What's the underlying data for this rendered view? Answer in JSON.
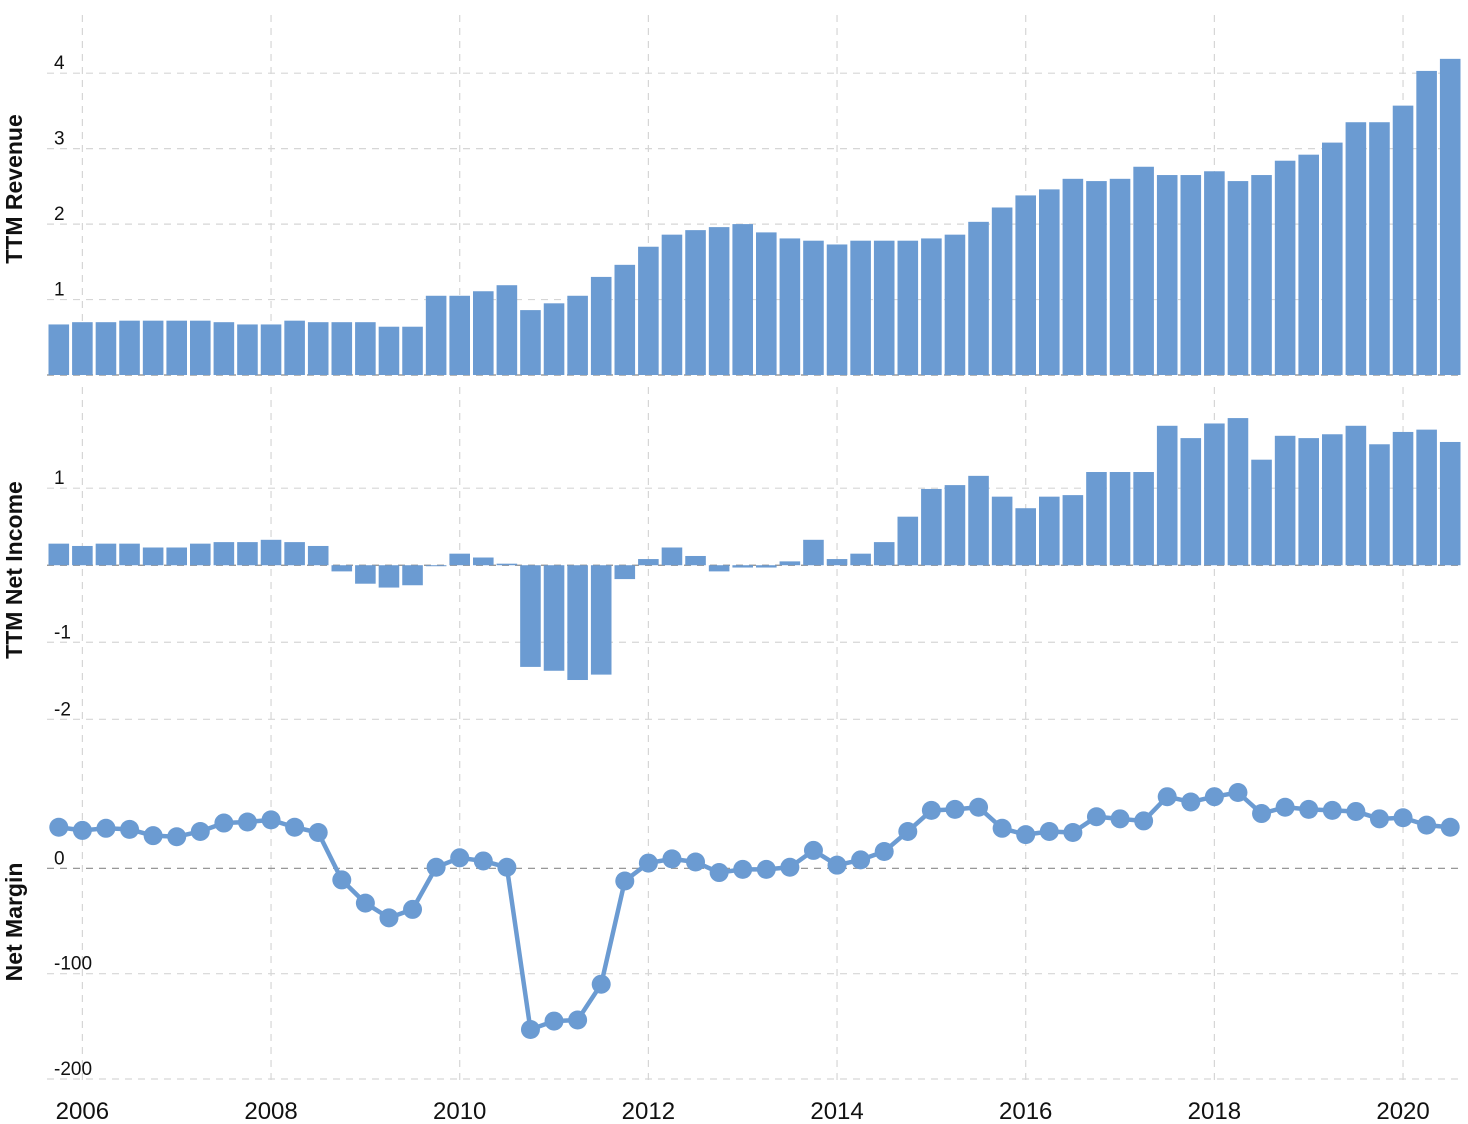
{
  "chart_data": [
    {
      "type": "bar",
      "ylabel": "TTM Revenue",
      "ylim": [
        0,
        4.4
      ],
      "yticks": [
        0,
        1,
        2,
        3,
        4
      ],
      "grid": true,
      "series": [
        {
          "color": "#6b9bd2",
          "x": [
            2005.75,
            2006.0,
            2006.25,
            2006.5,
            2006.75,
            2007.0,
            2007.25,
            2007.5,
            2007.75,
            2008.0,
            2008.25,
            2008.5,
            2008.75,
            2009.0,
            2009.25,
            2009.5,
            2009.75,
            2010.0,
            2010.25,
            2010.5,
            2010.75,
            2011.0,
            2011.25,
            2011.5,
            2011.75,
            2012.0,
            2012.25,
            2012.5,
            2012.75,
            2013.0,
            2013.25,
            2013.5,
            2013.75,
            2014.0,
            2014.25,
            2014.5,
            2014.75,
            2015.0,
            2015.25,
            2015.5,
            2015.75,
            2016.0,
            2016.25,
            2016.5,
            2016.75,
            2017.0,
            2017.25,
            2017.5,
            2017.75,
            2018.0,
            2018.25,
            2018.5,
            2018.75,
            2019.0,
            2019.25,
            2019.5,
            2019.75,
            2020.0,
            2020.25,
            2020.5
          ],
          "values": [
            0.67,
            0.7,
            0.7,
            0.72,
            0.72,
            0.72,
            0.72,
            0.7,
            0.67,
            0.67,
            0.72,
            0.7,
            0.7,
            0.7,
            0.64,
            0.64,
            1.05,
            1.05,
            1.11,
            1.19,
            0.86,
            0.95,
            1.05,
            1.3,
            1.46,
            1.7,
            1.86,
            1.92,
            1.96,
            2.0,
            1.89,
            1.81,
            1.78,
            1.73,
            1.78,
            1.78,
            1.78,
            1.81,
            1.86,
            2.03,
            2.22,
            2.38,
            2.46,
            2.6,
            2.57,
            2.6,
            2.76,
            2.65,
            2.65,
            2.7,
            2.57,
            2.65,
            2.84,
            2.92,
            3.08,
            3.35,
            3.35,
            3.57,
            4.03,
            4.19
          ]
        }
      ]
    },
    {
      "type": "bar",
      "ylabel": "TTM Net Income",
      "ylim": [
        -2.1,
        1.95
      ],
      "yticks": [
        -2,
        -1,
        0,
        1
      ],
      "grid": true,
      "series": [
        {
          "color": "#6b9bd2",
          "x": [
            2005.75,
            2006.0,
            2006.25,
            2006.5,
            2006.75,
            2007.0,
            2007.25,
            2007.5,
            2007.75,
            2008.0,
            2008.25,
            2008.5,
            2008.75,
            2009.0,
            2009.25,
            2009.5,
            2009.75,
            2010.0,
            2010.25,
            2010.5,
            2010.75,
            2011.0,
            2011.25,
            2011.5,
            2011.75,
            2012.0,
            2012.25,
            2012.5,
            2012.75,
            2013.0,
            2013.25,
            2013.5,
            2013.75,
            2014.0,
            2014.25,
            2014.5,
            2014.75,
            2015.0,
            2015.25,
            2015.5,
            2015.75,
            2016.0,
            2016.25,
            2016.5,
            2016.75,
            2017.0,
            2017.25,
            2017.5,
            2017.75,
            2018.0,
            2018.25,
            2018.5,
            2018.75,
            2019.0,
            2019.25,
            2019.5,
            2019.75,
            2020.0,
            2020.25,
            2020.5
          ],
          "values": [
            0.28,
            0.25,
            0.28,
            0.28,
            0.23,
            0.23,
            0.28,
            0.3,
            0.3,
            0.33,
            0.3,
            0.25,
            -0.08,
            -0.24,
            -0.29,
            -0.26,
            -0.01,
            0.15,
            0.1,
            0.02,
            -1.32,
            -1.37,
            -1.49,
            -1.42,
            -0.18,
            0.08,
            0.23,
            0.12,
            -0.08,
            -0.03,
            -0.03,
            0.05,
            0.33,
            0.08,
            0.15,
            0.3,
            0.63,
            0.99,
            1.04,
            1.16,
            0.89,
            0.74,
            0.89,
            0.91,
            1.21,
            1.21,
            1.21,
            1.81,
            1.65,
            1.84,
            1.91,
            1.37,
            1.68,
            1.65,
            1.7,
            1.81,
            1.57,
            1.73,
            1.76,
            1.6
          ]
        }
      ]
    },
    {
      "type": "line",
      "ylabel": "Net Margin",
      "ylim": [
        -200,
        100
      ],
      "yticks": [
        -200,
        -100,
        0
      ],
      "grid": true,
      "series": [
        {
          "color": "#6b9bd2",
          "x": [
            2005.75,
            2006.0,
            2006.25,
            2006.5,
            2006.75,
            2007.0,
            2007.25,
            2007.5,
            2007.75,
            2008.0,
            2008.25,
            2008.5,
            2008.75,
            2009.0,
            2009.25,
            2009.5,
            2009.75,
            2010.0,
            2010.25,
            2010.5,
            2010.75,
            2011.0,
            2011.25,
            2011.5,
            2011.75,
            2012.0,
            2012.25,
            2012.5,
            2012.75,
            2013.0,
            2013.25,
            2013.5,
            2013.75,
            2014.0,
            2014.25,
            2014.5,
            2014.75,
            2015.0,
            2015.25,
            2015.5,
            2015.75,
            2016.0,
            2016.25,
            2016.5,
            2016.75,
            2017.0,
            2017.25,
            2017.5,
            2017.75,
            2018.0,
            2018.25,
            2018.5,
            2018.75,
            2019.0,
            2019.25,
            2019.5,
            2019.75,
            2020.0,
            2020.25,
            2020.5
          ],
          "values": [
            39,
            36,
            38,
            37,
            31,
            30,
            35,
            43,
            44,
            46,
            39,
            34,
            -11,
            -33,
            -47,
            -39,
            1,
            10,
            7,
            1,
            -153,
            -145,
            -144,
            -110,
            -12,
            5,
            9,
            6,
            -4,
            -1,
            -1,
            1,
            17,
            3,
            8,
            16,
            35,
            55,
            56,
            58,
            38,
            32,
            35,
            34,
            49,
            47,
            45,
            68,
            63,
            68,
            72,
            52,
            58,
            56,
            55,
            54,
            47,
            48,
            41,
            39
          ]
        }
      ]
    }
  ],
  "x_axis": {
    "tick_labels": [
      "2006",
      "2008",
      "2010",
      "2012",
      "2014",
      "2016",
      "2018",
      "2020"
    ],
    "tick_values": [
      2006,
      2008,
      2010,
      2012,
      2014,
      2016,
      2018,
      2020
    ],
    "xlim": [
      2005.625,
      2020.625
    ]
  }
}
